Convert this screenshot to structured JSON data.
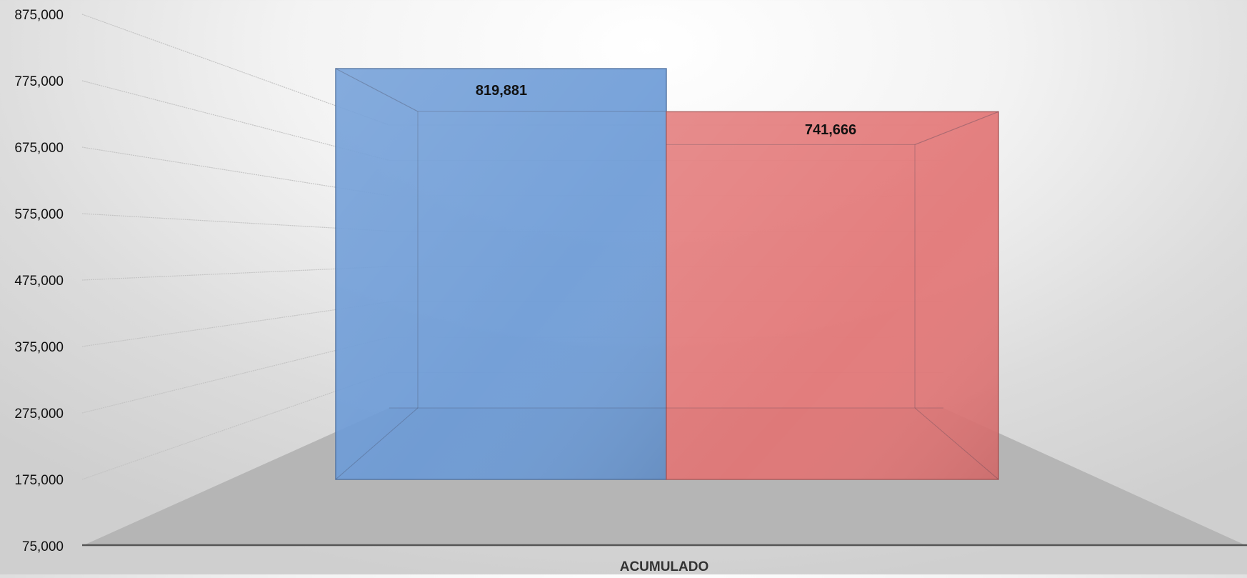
{
  "chart_data": {
    "type": "bar",
    "categories": [
      "ACUMULADO"
    ],
    "series": [
      {
        "values": [
          819881
        ],
        "label": "819,881",
        "color": "#6b9ad6"
      },
      {
        "values": [
          741666
        ],
        "label": "741,666",
        "color": "#e27474"
      }
    ],
    "ylim": [
      75000,
      875000
    ],
    "yticks": [
      "75,000",
      "175,000",
      "275,000",
      "375,000",
      "475,000",
      "575,000",
      "675,000",
      "775,000",
      "875,000"
    ],
    "grid": true,
    "legend": "none",
    "style": "3d"
  }
}
